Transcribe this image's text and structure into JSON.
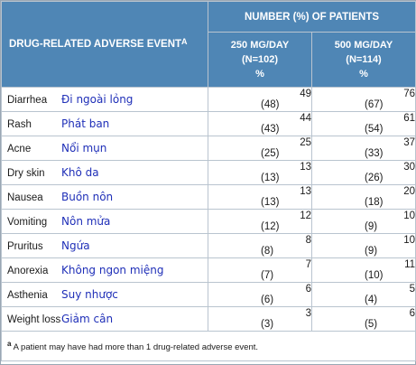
{
  "table": {
    "header": {
      "event_label": "DRUG-RELATED ADVERSE EVENT",
      "event_sup": "A",
      "group_label": "NUMBER (%) OF PATIENTS",
      "col1": {
        "line1": "250 MG/DAY",
        "line2": "(N=102)",
        "line3": "%"
      },
      "col2": {
        "line1": "500 MG/DAY",
        "line2": "(N=114)",
        "line3": "%"
      }
    },
    "rows": [
      {
        "en": "Diarrhea",
        "vi": "Đi ngoài lỏng",
        "c1n": "49",
        "c1p": "(48)",
        "c2n": "76",
        "c2p": "(67)"
      },
      {
        "en": "Rash",
        "vi": "Phát ban",
        "c1n": "44",
        "c1p": "(43)",
        "c2n": "61",
        "c2p": "(54)"
      },
      {
        "en": "Acne",
        "vi": "Nổi mụn",
        "c1n": "25",
        "c1p": "(25)",
        "c2n": "37",
        "c2p": "(33)"
      },
      {
        "en": "Dry skin",
        "vi": "Khô da",
        "c1n": "13",
        "c1p": "(13)",
        "c2n": "30",
        "c2p": "(26)"
      },
      {
        "en": "Nausea",
        "vi": "Buồn nôn",
        "c1n": "13",
        "c1p": "(13)",
        "c2n": "20",
        "c2p": "(18)"
      },
      {
        "en": "Vomiting",
        "vi": "Nôn mửa",
        "c1n": "12",
        "c1p": "(12)",
        "c2n": "10",
        "c2p": "(9)"
      },
      {
        "en": "Pruritus",
        "vi": "Ngứa",
        "c1n": "8",
        "c1p": "(8)",
        "c2n": "10",
        "c2p": "(9)"
      },
      {
        "en": "Anorexia",
        "vi": "Không ngon miệng",
        "c1n": "7",
        "c1p": "(7)",
        "c2n": "11",
        "c2p": "(10)"
      },
      {
        "en": "Asthenia",
        "vi": "Suy nhược",
        "c1n": "6",
        "c1p": "(6)",
        "c2n": "5",
        "c2p": "(4)"
      },
      {
        "en": "Weight loss",
        "vi": "Giảm cân",
        "c1n": "3",
        "c1p": "(3)",
        "c2n": "6",
        "c2p": "(5)"
      }
    ],
    "footnote": {
      "marker": "a",
      "text": "A patient may have had more than 1 drug-related adverse event."
    }
  }
}
